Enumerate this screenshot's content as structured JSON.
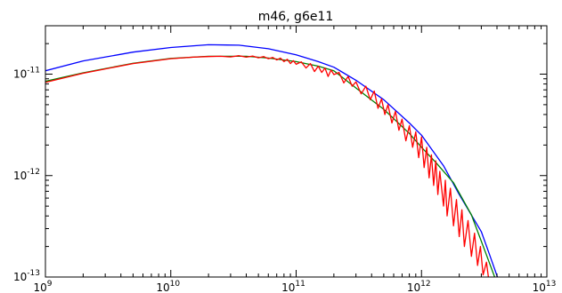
{
  "chart_data": {
    "type": "line",
    "title": "m46, g6e11",
    "xlabel": "",
    "ylabel": "",
    "x_scale": "log",
    "y_scale": "log",
    "xlim": [
      1000000000.0,
      10000000000000.0
    ],
    "ylim": [
      1e-13,
      3e-11
    ],
    "grid": false,
    "x_ticks": [
      {
        "base": "10",
        "exp": "9",
        "value": 1000000000.0
      },
      {
        "base": "10",
        "exp": "10",
        "value": 10000000000.0
      },
      {
        "base": "10",
        "exp": "11",
        "value": 100000000000.0
      },
      {
        "base": "10",
        "exp": "12",
        "value": 1000000000000.0
      },
      {
        "base": "10",
        "exp": "13",
        "value": 10000000000000.0
      }
    ],
    "y_ticks": [
      {
        "base": "10",
        "exp": "-13",
        "value": 1e-13
      },
      {
        "base": "10",
        "exp": "-12",
        "value": 1e-12
      },
      {
        "base": "10",
        "exp": "-11",
        "value": 1e-11
      }
    ],
    "series": [
      {
        "color": "#0000ff",
        "points": [
          [
            1000000000.0,
            1.08e-11
          ],
          [
            2000000000.0,
            1.35e-11
          ],
          [
            5000000000.0,
            1.65e-11
          ],
          [
            10000000000.0,
            1.83e-11
          ],
          [
            20000000000.0,
            1.95e-11
          ],
          [
            35000000000.0,
            1.93e-11
          ],
          [
            60000000000.0,
            1.78e-11
          ],
          [
            100000000000.0,
            1.55e-11
          ],
          [
            150000000000.0,
            1.33e-11
          ],
          [
            200000000000.0,
            1.17e-11
          ],
          [
            300000000000.0,
            8.7e-12
          ],
          [
            500000000000.0,
            5.6e-12
          ],
          [
            800000000000.0,
            3.3e-12
          ],
          [
            1000000000000.0,
            2.5e-12
          ],
          [
            1500000000000.0,
            1.25e-12
          ],
          [
            2000000000000.0,
            6.5e-13
          ],
          [
            3000000000000.0,
            2.8e-13
          ],
          [
            3500000000000.0,
            1.65e-13
          ],
          [
            4300000000000.0,
            8e-14
          ]
        ]
      },
      {
        "color": "#008000",
        "points": [
          [
            1000000000.0,
            8.5e-12
          ],
          [
            2000000000.0,
            1.03e-11
          ],
          [
            5000000000.0,
            1.28e-11
          ],
          [
            10000000000.0,
            1.43e-11
          ],
          [
            20000000000.0,
            1.5e-11
          ],
          [
            40000000000.0,
            1.5e-11
          ],
          [
            60000000000.0,
            1.44e-11
          ],
          [
            100000000000.0,
            1.33e-11
          ],
          [
            150000000000.0,
            1.2e-11
          ],
          [
            200000000000.0,
            1.08e-11
          ],
          [
            300000000000.0,
            7.3e-12
          ],
          [
            500000000000.0,
            4.5e-12
          ],
          [
            800000000000.0,
            2.6e-12
          ],
          [
            1000000000000.0,
            1.9e-12
          ],
          [
            1300000000000.0,
            1.35e-12
          ],
          [
            1800000000000.0,
            8.5e-13
          ],
          [
            2500000000000.0,
            4.1e-13
          ],
          [
            3300000000000.0,
            1.65e-13
          ],
          [
            4100000000000.0,
            8e-14
          ]
        ]
      },
      {
        "color": "#ff0000",
        "points": [
          [
            1000000000.0,
            8.3e-12
          ],
          [
            2000000000.0,
            1.02e-11
          ],
          [
            5000000000.0,
            1.27e-11
          ],
          [
            10000000000.0,
            1.42e-11
          ],
          [
            15000000000.0,
            1.47e-11
          ],
          [
            20000000000.0,
            1.49e-11
          ],
          [
            25000000000.0,
            1.5e-11
          ],
          [
            30000000000.0,
            1.48e-11
          ],
          [
            35000000000.0,
            1.52e-11
          ],
          [
            40000000000.0,
            1.47e-11
          ],
          [
            45000000000.0,
            1.51e-11
          ],
          [
            50000000000.0,
            1.45e-11
          ],
          [
            55000000000.0,
            1.49e-11
          ],
          [
            60000000000.0,
            1.42e-11
          ],
          [
            65000000000.0,
            1.46e-11
          ],
          [
            70000000000.0,
            1.38e-11
          ],
          [
            75000000000.0,
            1.44e-11
          ],
          [
            80000000000.0,
            1.33e-11
          ],
          [
            85000000000.0,
            1.4e-11
          ],
          [
            90000000000.0,
            1.27e-11
          ],
          [
            95000000000.0,
            1.36e-11
          ],
          [
            100000000000.0,
            1.25e-11
          ],
          [
            110000000000.0,
            1.32e-11
          ],
          [
            120000000000.0,
            1.15e-11
          ],
          [
            130000000000.0,
            1.27e-11
          ],
          [
            140000000000.0,
            1.06e-11
          ],
          [
            150000000000.0,
            1.2e-11
          ],
          [
            160000000000.0,
            1.04e-11
          ],
          [
            170000000000.0,
            1.15e-11
          ],
          [
            180000000000.0,
            9.5e-12
          ],
          [
            190000000000.0,
            1.1e-11
          ],
          [
            200000000000.0,
            9.9e-12
          ],
          [
            220000000000.0,
            1.04e-11
          ],
          [
            240000000000.0,
            8.2e-12
          ],
          [
            260000000000.0,
            9.5e-12
          ],
          [
            280000000000.0,
            7.6e-12
          ],
          [
            300000000000.0,
            8.4e-12
          ],
          [
            330000000000.0,
            6.4e-12
          ],
          [
            360000000000.0,
            7.6e-12
          ],
          [
            390000000000.0,
            5.6e-12
          ],
          [
            420000000000.0,
            6.8e-12
          ],
          [
            450000000000.0,
            4.6e-12
          ],
          [
            480000000000.0,
            5.7e-12
          ],
          [
            510000000000.0,
            4e-12
          ],
          [
            540000000000.0,
            5e-12
          ],
          [
            580000000000.0,
            3.3e-12
          ],
          [
            620000000000.0,
            4.3e-12
          ],
          [
            660000000000.0,
            2.8e-12
          ],
          [
            700000000000.0,
            3.6e-12
          ],
          [
            750000000000.0,
            2.2e-12
          ],
          [
            800000000000.0,
            3.1e-12
          ],
          [
            850000000000.0,
            1.9e-12
          ],
          [
            900000000000.0,
            2.7e-12
          ],
          [
            950000000000.0,
            1.5e-12
          ],
          [
            1000000000000.0,
            2.4e-12
          ],
          [
            1050000000000.0,
            1.2e-12
          ],
          [
            1100000000000.0,
            1.9e-12
          ],
          [
            1150000000000.0,
            9.5e-13
          ],
          [
            1200000000000.0,
            1.6e-12
          ],
          [
            1250000000000.0,
            8e-13
          ],
          [
            1300000000000.0,
            1.4e-12
          ],
          [
            1350000000000.0,
            6.5e-13
          ],
          [
            1400000000000.0,
            1.1e-12
          ],
          [
            1500000000000.0,
            5e-13
          ],
          [
            1550000000000.0,
            9e-13
          ],
          [
            1600000000000.0,
            4e-13
          ],
          [
            1700000000000.0,
            7.5e-13
          ],
          [
            1800000000000.0,
            3.2e-13
          ],
          [
            1900000000000.0,
            5.8e-13
          ],
          [
            2000000000000.0,
            2.5e-13
          ],
          [
            2100000000000.0,
            4.6e-13
          ],
          [
            2200000000000.0,
            2e-13
          ],
          [
            2350000000000.0,
            3.6e-13
          ],
          [
            2500000000000.0,
            1.6e-13
          ],
          [
            2650000000000.0,
            2.7e-13
          ],
          [
            2800000000000.0,
            1.3e-13
          ],
          [
            2950000000000.0,
            2e-13
          ],
          [
            3100000000000.0,
            1.05e-13
          ],
          [
            3300000000000.0,
            1.4e-13
          ],
          [
            3500000000000.0,
            8e-14
          ]
        ]
      }
    ]
  }
}
